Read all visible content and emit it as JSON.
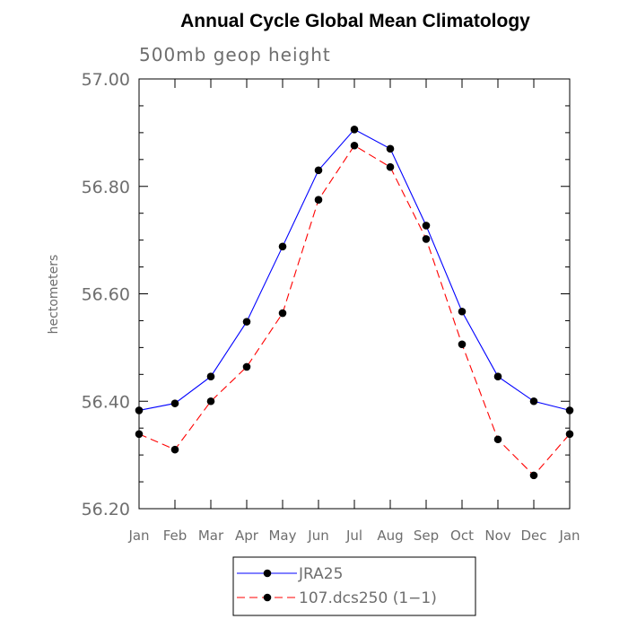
{
  "chart_data": {
    "type": "line",
    "title": "Annual Cycle Global Mean Climatology",
    "subtitle": "500mb geop height",
    "xlabel": "",
    "ylabel": "hectometers",
    "categories": [
      "Jan",
      "Feb",
      "Mar",
      "Apr",
      "May",
      "Jun",
      "Jul",
      "Aug",
      "Sep",
      "Oct",
      "Nov",
      "Dec",
      "Jan"
    ],
    "ylim": [
      56.2,
      57.0
    ],
    "yticks": [
      "56.20",
      "56.40",
      "56.60",
      "56.80",
      "57.00"
    ],
    "grid": false,
    "legend_position": "bottom-center",
    "series": [
      {
        "name": "JRA25",
        "color": "#0000ff",
        "line_style": "solid",
        "marker": "filled-circle",
        "values": [
          56.383,
          56.396,
          56.446,
          56.548,
          56.688,
          56.83,
          56.906,
          56.87,
          56.727,
          56.567,
          56.446,
          56.4,
          56.383
        ]
      },
      {
        "name": "107.dcs250 (1−1)",
        "color": "#ff0000",
        "line_style": "dashed",
        "marker": "filled-circle",
        "values": [
          56.339,
          56.31,
          56.4,
          56.464,
          56.564,
          56.775,
          56.876,
          56.836,
          56.702,
          56.506,
          56.329,
          56.262,
          56.339
        ]
      }
    ]
  }
}
